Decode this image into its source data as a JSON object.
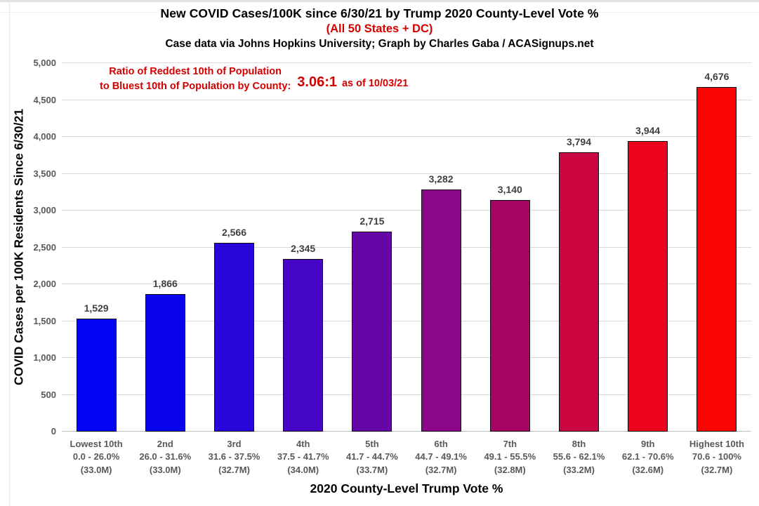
{
  "header": {
    "title": "New COVID Cases/100K since 6/30/21 by Trump 2020 County-Level Vote %",
    "subtitle": "(All 50 States + DC)",
    "subtitle_color": "#d40000",
    "credit": "Case data via Johns Hopkins University; Graph by Charles Gaba / ACASignups.net"
  },
  "annotation": {
    "line1": "Ratio of Reddest 10th of Population",
    "line2": "to Bluest 10th of Population by County:",
    "ratio": "3.06:1",
    "as_of": "as of 10/03/21",
    "color": "#d40000"
  },
  "chart_data": {
    "type": "bar",
    "title": "New COVID Cases/100K since 6/30/21 by Trump 2020 County-Level Vote %",
    "xlabel": "2020 County-Level Trump Vote %",
    "ylabel": "COVID Cases per 100K Residents Since 6/30/21",
    "ylim": [
      0,
      5000
    ],
    "grid": true,
    "legend": "none",
    "yticks": [
      0,
      500,
      1000,
      1500,
      2000,
      2500,
      3000,
      3500,
      4000,
      4500,
      5000
    ],
    "ytick_labels": [
      "0",
      "500",
      "1,000",
      "1,500",
      "2,000",
      "2,500",
      "3,000",
      "3,500",
      "4,000",
      "4,500",
      "5,000"
    ],
    "categories": [
      {
        "tier": "Lowest 10th",
        "range": "0.0 - 26.0%",
        "population": "(33.0M)"
      },
      {
        "tier": "2nd",
        "range": "26.0 - 31.6%",
        "population": "(33.0M)"
      },
      {
        "tier": "3rd",
        "range": "31.6 - 37.5%",
        "population": "(32.7M)"
      },
      {
        "tier": "4th",
        "range": "37.5 - 41.7%",
        "population": "(34.0M)"
      },
      {
        "tier": "5th",
        "range": "41.7 - 44.7%",
        "population": "(33.7M)"
      },
      {
        "tier": "6th",
        "range": "44.7 - 49.1%",
        "population": "(32.7M)"
      },
      {
        "tier": "7th",
        "range": "49.1 - 55.5%",
        "population": "(32.8M)"
      },
      {
        "tier": "8th",
        "range": "55.6 - 62.1%",
        "population": "(33.2M)"
      },
      {
        "tier": "9th",
        "range": "62.1 - 70.6%",
        "population": "(32.6M)"
      },
      {
        "tier": "Highest 10th",
        "range": "70.6 - 100%",
        "population": "(32.7M)"
      }
    ],
    "values": [
      1529,
      1866,
      2566,
      2345,
      2715,
      3282,
      3140,
      3794,
      3944,
      4676
    ],
    "value_labels": [
      "1,529",
      "1,866",
      "2,566",
      "2,345",
      "2,715",
      "3,282",
      "3,140",
      "3,794",
      "3,944",
      "4,676"
    ],
    "bar_colors": [
      "#0404f2",
      "#0a04ee",
      "#2b06dc",
      "#4506c5",
      "#6506a7",
      "#8b0689",
      "#a70565",
      "#cb0540",
      "#ec051b",
      "#fb0404"
    ],
    "gridline_color": "#d9d9d9",
    "value_label_color": "#3f3f3f",
    "tick_label_color": "#595959"
  }
}
